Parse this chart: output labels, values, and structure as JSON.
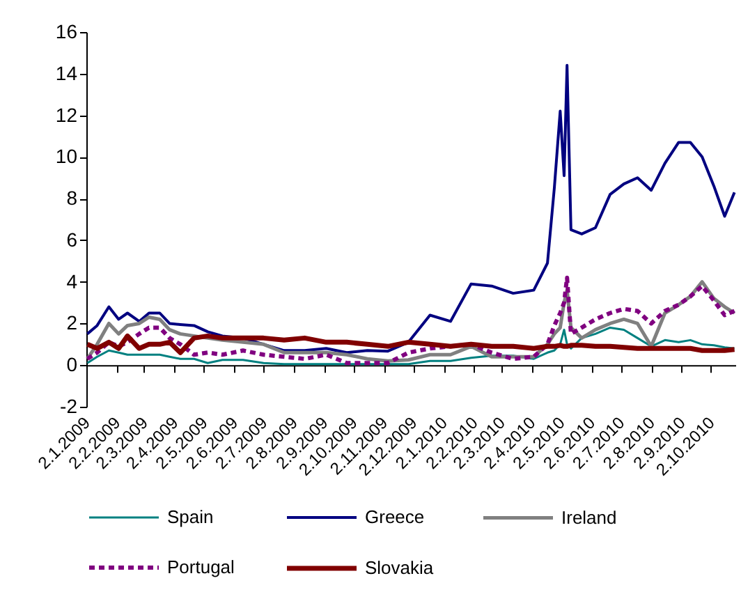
{
  "chart_data": {
    "type": "line",
    "x": [
      "2009-01-03",
      "2009-01-13",
      "2009-01-25",
      "2009-02-04",
      "2009-02-13",
      "2009-02-25",
      "2009-03-07",
      "2009-03-18",
      "2009-03-28",
      "2009-04-08",
      "2009-04-22",
      "2009-05-06",
      "2009-05-21",
      "2009-06-11",
      "2009-07-02",
      "2009-07-23",
      "2009-08-13",
      "2009-09-04",
      "2009-09-25",
      "2009-10-16",
      "2009-11-06",
      "2009-11-27",
      "2009-12-19",
      "2010-01-09",
      "2010-01-30",
      "2010-02-20",
      "2010-03-14",
      "2010-04-04",
      "2010-04-18",
      "2010-04-25",
      "2010-05-01",
      "2010-05-05",
      "2010-05-08",
      "2010-05-12",
      "2010-05-23",
      "2010-06-06",
      "2010-06-21",
      "2010-07-05",
      "2010-07-19",
      "2010-08-02",
      "2010-08-16",
      "2010-08-30",
      "2010-09-11",
      "2010-09-23",
      "2010-10-05",
      "2010-10-16",
      "2010-10-26"
    ],
    "series": [
      {
        "name": "Spain",
        "color": "#008080",
        "values": [
          0.1,
          0.4,
          0.7,
          0.6,
          0.5,
          0.5,
          0.5,
          0.5,
          0.4,
          0.3,
          0.3,
          0.1,
          0.25,
          0.25,
          0.1,
          0.05,
          0.05,
          0.05,
          0.05,
          0.05,
          0.05,
          0.05,
          0.2,
          0.2,
          0.35,
          0.45,
          0.45,
          0.3,
          0.6,
          0.7,
          1.0,
          1.7,
          1.0,
          0.8,
          1.3,
          1.5,
          1.8,
          1.7,
          1.3,
          0.9,
          1.2,
          1.1,
          1.2,
          1.0,
          0.95,
          0.85,
          0.8
        ]
      },
      {
        "name": "Greece",
        "color": "#000080",
        "values": [
          1.5,
          1.9,
          2.8,
          2.2,
          2.5,
          2.1,
          2.5,
          2.5,
          2.0,
          1.95,
          1.9,
          1.6,
          1.4,
          1.3,
          1.0,
          0.7,
          0.7,
          0.8,
          0.6,
          0.7,
          0.67,
          1.1,
          2.4,
          2.1,
          3.9,
          3.8,
          3.45,
          3.6,
          4.9,
          8.5,
          12.2,
          9.1,
          14.4,
          6.5,
          6.3,
          6.6,
          8.2,
          8.7,
          9.0,
          8.4,
          9.7,
          10.7,
          10.7,
          10.0,
          8.6,
          7.15,
          8.3
        ]
      },
      {
        "name": "Ireland",
        "color": "#808080",
        "values": [
          0.3,
          1.0,
          2.0,
          1.5,
          1.9,
          2.0,
          2.3,
          2.2,
          1.7,
          1.5,
          1.4,
          1.3,
          1.2,
          1.1,
          1.0,
          0.6,
          0.6,
          0.6,
          0.5,
          0.3,
          0.2,
          0.25,
          0.5,
          0.5,
          0.9,
          0.4,
          0.4,
          0.4,
          1.0,
          1.5,
          1.8,
          3.0,
          3.6,
          1.8,
          1.3,
          1.7,
          2.0,
          2.2,
          2.0,
          0.9,
          2.5,
          2.9,
          3.3,
          4.0,
          3.2,
          2.8,
          2.5
        ]
      },
      {
        "name": "Portugal",
        "color": "#800080",
        "line_style": "dashed",
        "values": [
          0.3,
          0.6,
          1.1,
          0.9,
          1.1,
          1.5,
          1.8,
          1.8,
          1.3,
          1.0,
          0.5,
          0.6,
          0.5,
          0.7,
          0.5,
          0.4,
          0.3,
          0.5,
          0.1,
          0.1,
          0.1,
          0.6,
          0.8,
          0.9,
          1.0,
          0.6,
          0.3,
          0.4,
          1.0,
          1.9,
          2.5,
          3.0,
          4.2,
          1.5,
          1.8,
          2.2,
          2.5,
          2.7,
          2.6,
          2.0,
          2.6,
          2.9,
          3.3,
          3.8,
          3.1,
          2.4,
          2.6
        ]
      },
      {
        "name": "Slovakia",
        "color": "#800000",
        "values": [
          1.0,
          0.8,
          1.1,
          0.8,
          1.4,
          0.8,
          1.0,
          1.0,
          1.1,
          0.6,
          1.3,
          1.4,
          1.3,
          1.3,
          1.3,
          1.2,
          1.3,
          1.1,
          1.1,
          1.0,
          0.9,
          1.1,
          1.0,
          0.9,
          1.0,
          0.9,
          0.9,
          0.8,
          0.9,
          0.9,
          0.95,
          0.9,
          0.9,
          0.95,
          0.95,
          0.9,
          0.9,
          0.85,
          0.8,
          0.8,
          0.8,
          0.8,
          0.8,
          0.7,
          0.7,
          0.7,
          0.75
        ]
      }
    ],
    "xlim": [
      "2009-01-02",
      "2010-10-27"
    ],
    "xticks": [
      {
        "value": "2009-01-02",
        "label": "2.1.2009"
      },
      {
        "value": "2009-02-02",
        "label": "2.2.2009"
      },
      {
        "value": "2009-03-02",
        "label": "2.3.2009"
      },
      {
        "value": "2009-04-02",
        "label": "2.4.2009"
      },
      {
        "value": "2009-05-02",
        "label": "2.5.2009"
      },
      {
        "value": "2009-06-02",
        "label": "2.6.2009"
      },
      {
        "value": "2009-07-02",
        "label": "2.7.2009"
      },
      {
        "value": "2009-08-02",
        "label": "2.8.2009"
      },
      {
        "value": "2009-09-02",
        "label": "2.9.2009"
      },
      {
        "value": "2009-10-02",
        "label": "2.10.2009"
      },
      {
        "value": "2009-11-02",
        "label": "2.11.2009"
      },
      {
        "value": "2009-12-02",
        "label": "2.12.2009"
      },
      {
        "value": "2010-01-02",
        "label": "2.1.2010"
      },
      {
        "value": "2010-02-02",
        "label": "2.2.2010"
      },
      {
        "value": "2010-03-02",
        "label": "2.3.2010"
      },
      {
        "value": "2010-04-02",
        "label": "2.4.2010"
      },
      {
        "value": "2010-05-02",
        "label": "2.5.2010"
      },
      {
        "value": "2010-06-02",
        "label": "2.6.2010"
      },
      {
        "value": "2010-07-02",
        "label": "2.7.2010"
      },
      {
        "value": "2010-08-02",
        "label": "2.8.2010"
      },
      {
        "value": "2010-09-02",
        "label": "2.9.2010"
      },
      {
        "value": "2010-10-02",
        "label": "2.10.2010"
      }
    ],
    "ylim": [
      -2,
      16
    ],
    "yticks": [
      -2,
      0,
      2,
      4,
      6,
      8,
      10,
      12,
      14,
      16
    ],
    "legend": "bottom",
    "marker": "none",
    "line_style": "solid"
  }
}
